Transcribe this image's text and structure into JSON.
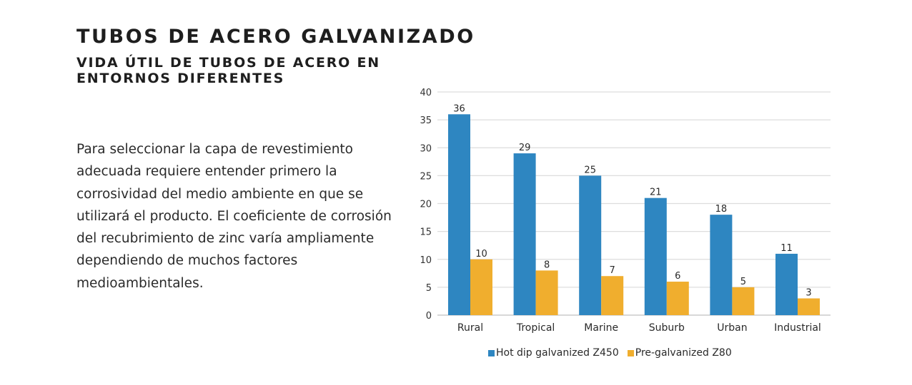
{
  "header": {
    "title": "TUBOS DE ACERO GALVANIZADO",
    "subtitle": "VIDA ÚTIL DE TUBOS DE ACERO EN ENTORNOS DIFERENTES"
  },
  "body": {
    "paragraph": "Para seleccionar la capa de revestimiento adecuada requiere entender primero la corrosividad del medio ambiente en que se utilizará el producto. El coeficiente de corrosión del recubrimiento de zinc varía ampliamente dependiendo de muchos factores medioambientales."
  },
  "colors": {
    "series1": "#2e86c1",
    "series2": "#f0ae2e",
    "grid": "#dddddd"
  },
  "chart_data": {
    "type": "bar",
    "title": "",
    "xlabel": "",
    "ylabel": "",
    "categories": [
      "Rural",
      "Tropical",
      "Marine",
      "Suburb",
      "Urban",
      "Industrial"
    ],
    "series": [
      {
        "name": "Hot dip galvanized Z450",
        "values": [
          36,
          29,
          25,
          21,
          18,
          11
        ]
      },
      {
        "name": "Pre-galvanized Z80",
        "values": [
          10,
          8,
          7,
          6,
          5,
          3
        ]
      }
    ],
    "ylim": [
      0,
      40
    ],
    "yticks": [
      0,
      5,
      10,
      15,
      20,
      25,
      30,
      35,
      40
    ],
    "grid": true,
    "data_labels": true,
    "legend_position": "bottom"
  }
}
